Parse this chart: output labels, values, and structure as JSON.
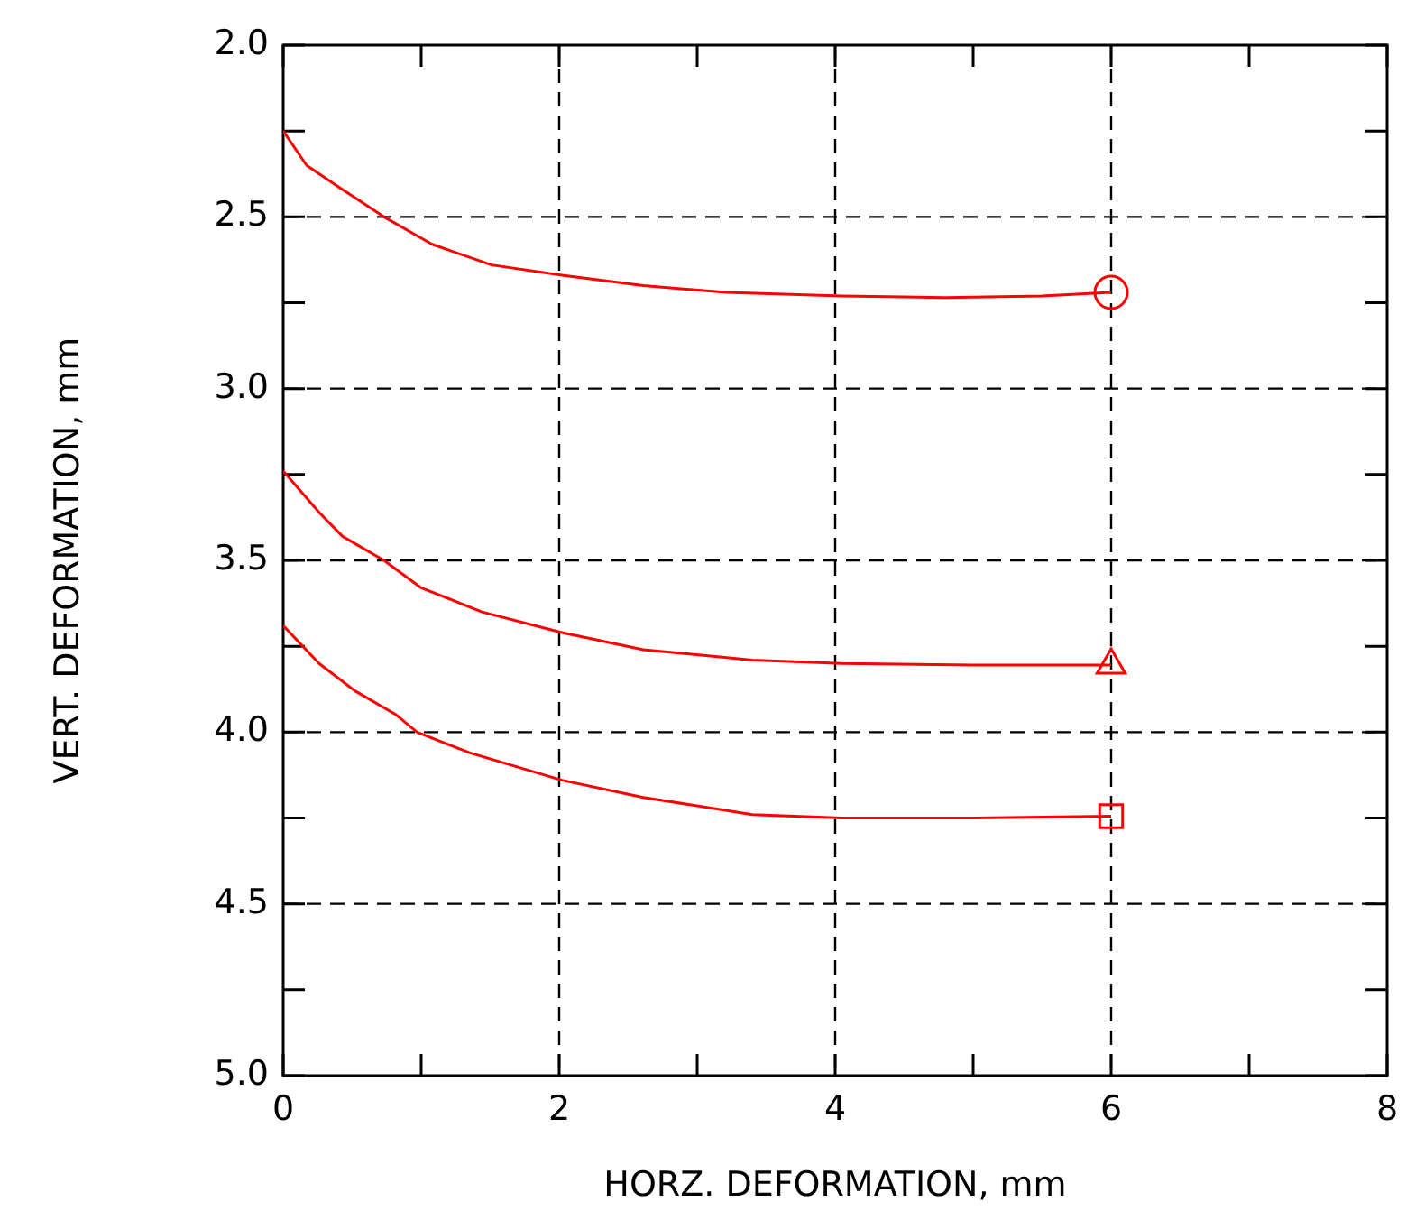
{
  "chart_data": {
    "type": "line",
    "xlabel": "HORZ. DEFORMATION, mm",
    "ylabel": "VERT. DEFORMATION, mm",
    "xlim": [
      0,
      8
    ],
    "xticks": [
      0,
      {
        "value": 1,
        "label": null
      },
      2,
      {
        "value": 3,
        "label": null
      },
      4,
      {
        "value": 5,
        "label": null
      },
      6,
      {
        "value": 7,
        "label": null
      },
      8
    ],
    "ylim": [
      5.0,
      2.0
    ],
    "yticks": [
      {
        "value": 2.0,
        "label": "2.0"
      },
      {
        "value": 2.25,
        "label": null
      },
      2.5,
      {
        "value": 2.75,
        "label": null
      },
      {
        "value": 3.0,
        "label": "3.0"
      },
      {
        "value": 3.25,
        "label": null
      },
      3.5,
      {
        "value": 3.75,
        "label": null
      },
      {
        "value": 4.0,
        "label": "4.0"
      },
      {
        "value": 4.25,
        "label": null
      },
      4.5,
      {
        "value": 4.75,
        "label": null
      },
      {
        "value": 5.0,
        "label": "5.0"
      }
    ],
    "grid": true,
    "line_style": "solid",
    "legend": false,
    "series": [
      {
        "color": "#ff0000",
        "x": [
          0,
          0.17,
          0.39,
          0.73,
          1.08,
          1.51,
          2.02,
          2.61,
          3.21,
          4.05,
          4.8,
          5.5,
          6
        ],
        "values": [
          2.25,
          2.35,
          2.41,
          2.5,
          2.58,
          2.64,
          2.67,
          2.7,
          2.72,
          2.73,
          2.735,
          2.73,
          2.72
        ]
      },
      {
        "color": "#ff0000",
        "x": [
          0,
          0.26,
          0.43,
          0.73,
          1.0,
          1.44,
          2.02,
          2.61,
          3.4,
          4.05,
          5.0,
          6
        ],
        "values": [
          3.24,
          3.36,
          3.43,
          3.5,
          3.58,
          3.65,
          3.71,
          3.76,
          3.79,
          3.8,
          3.805,
          3.805
        ]
      },
      {
        "color": "#ff0000",
        "x": [
          0,
          0.26,
          0.52,
          0.82,
          0.97,
          1.35,
          2.02,
          2.61,
          3.4,
          4.05,
          5.0,
          6
        ],
        "values": [
          3.69,
          3.8,
          3.88,
          3.95,
          4.0,
          4.06,
          4.14,
          4.19,
          4.24,
          4.25,
          4.25,
          4.245
        ]
      },
      {
        "type": "scatter",
        "color": "#ff0000",
        "marker": "circle",
        "x": [
          6
        ],
        "values": [
          2.72
        ]
      },
      {
        "type": "scatter",
        "color": "#ff0000",
        "marker": "triangle",
        "x": [
          6
        ],
        "values": [
          3.805
        ]
      },
      {
        "type": "scatter",
        "color": "#ff0000",
        "marker": "square",
        "x": [
          6
        ],
        "values": [
          4.245
        ]
      }
    ]
  }
}
